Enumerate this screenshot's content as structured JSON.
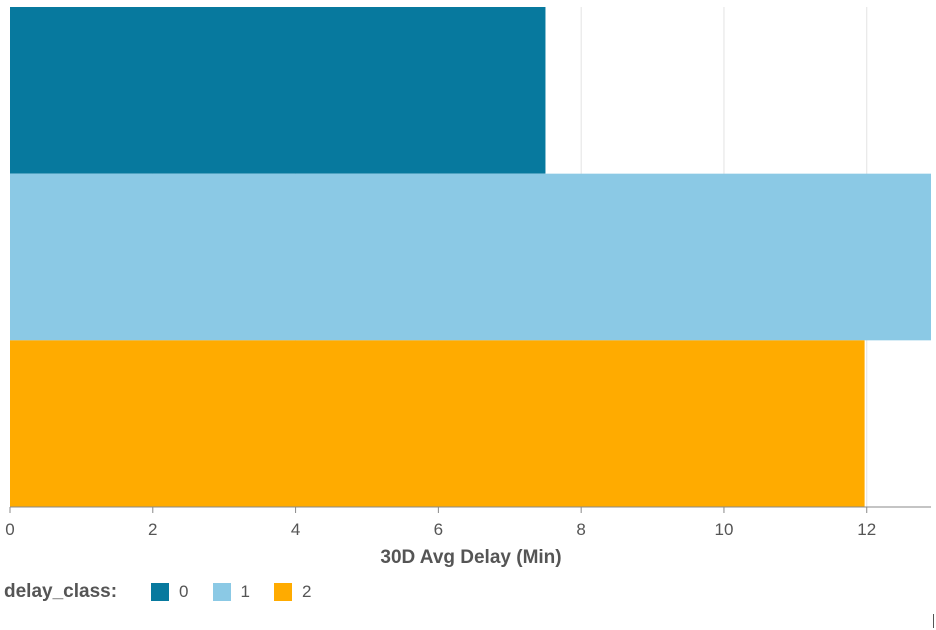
{
  "chart_data": {
    "type": "bar",
    "orientation": "horizontal",
    "categories": [
      "0",
      "1",
      "2"
    ],
    "values": [
      7.5,
      12.9,
      11.97
    ],
    "colors": [
      "#07799E",
      "#8BC9E5",
      "#FFAB00"
    ],
    "xlabel": "30D Avg Delay (Min)",
    "ylabel": "",
    "xlim": [
      0,
      12.9
    ],
    "xticks": [
      0,
      2,
      4,
      6,
      8,
      10,
      12
    ],
    "grid": true,
    "legend": {
      "title": "delay_class:",
      "placement": "bottom-left",
      "entries": [
        "0",
        "1",
        "2"
      ]
    }
  }
}
